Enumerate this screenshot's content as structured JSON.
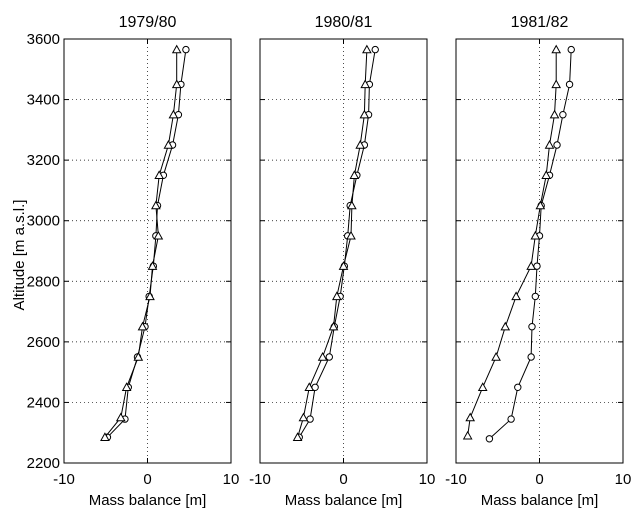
{
  "figure": {
    "ylabel": "Altitude [m a.s.l.]",
    "xlabel": "Mass balance [m]"
  },
  "chart_data": [
    {
      "type": "line",
      "title": "1979/80",
      "xlabel": "Mass balance [m]",
      "ylabel": "Altitude [m a.s.l.]",
      "xlim": [
        -10,
        10
      ],
      "ylim": [
        2200,
        3600
      ],
      "xticks": [
        -10,
        0,
        10
      ],
      "yticks": [
        2200,
        2400,
        2600,
        2800,
        3000,
        3200,
        3400,
        3600
      ],
      "grid": true,
      "series": [
        {
          "marker": "circle",
          "x": [
            -4.8,
            -2.7,
            -2.3,
            -1.2,
            -0.3,
            0.2,
            0.7,
            1.0,
            1.2,
            1.9,
            3.0,
            3.7,
            4.0,
            4.6
          ],
          "y": [
            2285,
            2345,
            2450,
            2550,
            2650,
            2750,
            2850,
            2950,
            3050,
            3150,
            3250,
            3350,
            3450,
            3565
          ]
        },
        {
          "marker": "triangle",
          "x": [
            -5.1,
            -3.2,
            -2.5,
            -1.1,
            -0.6,
            0.3,
            0.6,
            1.3,
            1.0,
            1.4,
            2.5,
            3.1,
            3.5,
            3.5
          ],
          "y": [
            2285,
            2350,
            2450,
            2550,
            2650,
            2750,
            2850,
            2950,
            3050,
            3150,
            3250,
            3350,
            3450,
            3565
          ]
        }
      ]
    },
    {
      "type": "line",
      "title": "1980/81",
      "xlabel": "Mass balance [m]",
      "xlim": [
        -10,
        10
      ],
      "ylim": [
        2200,
        3600
      ],
      "xticks": [
        -10,
        0,
        10
      ],
      "grid": true,
      "series": [
        {
          "marker": "circle",
          "x": [
            -5.3,
            -4.0,
            -3.4,
            -1.7,
            -1.1,
            -0.4,
            0.1,
            0.5,
            0.8,
            1.6,
            2.5,
            3.0,
            3.1,
            3.8
          ],
          "y": [
            2285,
            2345,
            2450,
            2550,
            2650,
            2750,
            2850,
            2950,
            3050,
            3150,
            3250,
            3350,
            3450,
            3565
          ]
        },
        {
          "marker": "triangle",
          "x": [
            -5.5,
            -4.8,
            -4.1,
            -2.5,
            -1.2,
            -0.8,
            0.0,
            0.9,
            1.0,
            1.3,
            2.0,
            2.5,
            2.6,
            2.8
          ],
          "y": [
            2285,
            2350,
            2450,
            2550,
            2650,
            2750,
            2850,
            2950,
            3050,
            3150,
            3250,
            3350,
            3450,
            3565
          ]
        }
      ]
    },
    {
      "type": "line",
      "title": "1981/82",
      "xlabel": "Mass balance [m]",
      "xlim": [
        -10,
        10
      ],
      "ylim": [
        2200,
        3600
      ],
      "xticks": [
        -10,
        0,
        10
      ],
      "grid": true,
      "series": [
        {
          "marker": "circle",
          "x": [
            -6.0,
            -3.4,
            -2.6,
            -1.0,
            -0.9,
            -0.5,
            -0.3,
            0.0,
            0.2,
            1.2,
            2.1,
            2.8,
            3.6,
            3.8
          ],
          "y": [
            2280,
            2345,
            2450,
            2550,
            2650,
            2750,
            2850,
            2950,
            3050,
            3150,
            3250,
            3350,
            3450,
            3565
          ]
        },
        {
          "marker": "triangle",
          "x": [
            -8.6,
            -8.3,
            -6.8,
            -5.2,
            -4.1,
            -2.8,
            -1.0,
            -0.5,
            0.1,
            0.8,
            1.2,
            1.8,
            2.0,
            2.0
          ],
          "y": [
            2290,
            2350,
            2450,
            2550,
            2650,
            2750,
            2850,
            2950,
            3050,
            3150,
            3250,
            3350,
            3450,
            3565
          ]
        }
      ]
    }
  ]
}
